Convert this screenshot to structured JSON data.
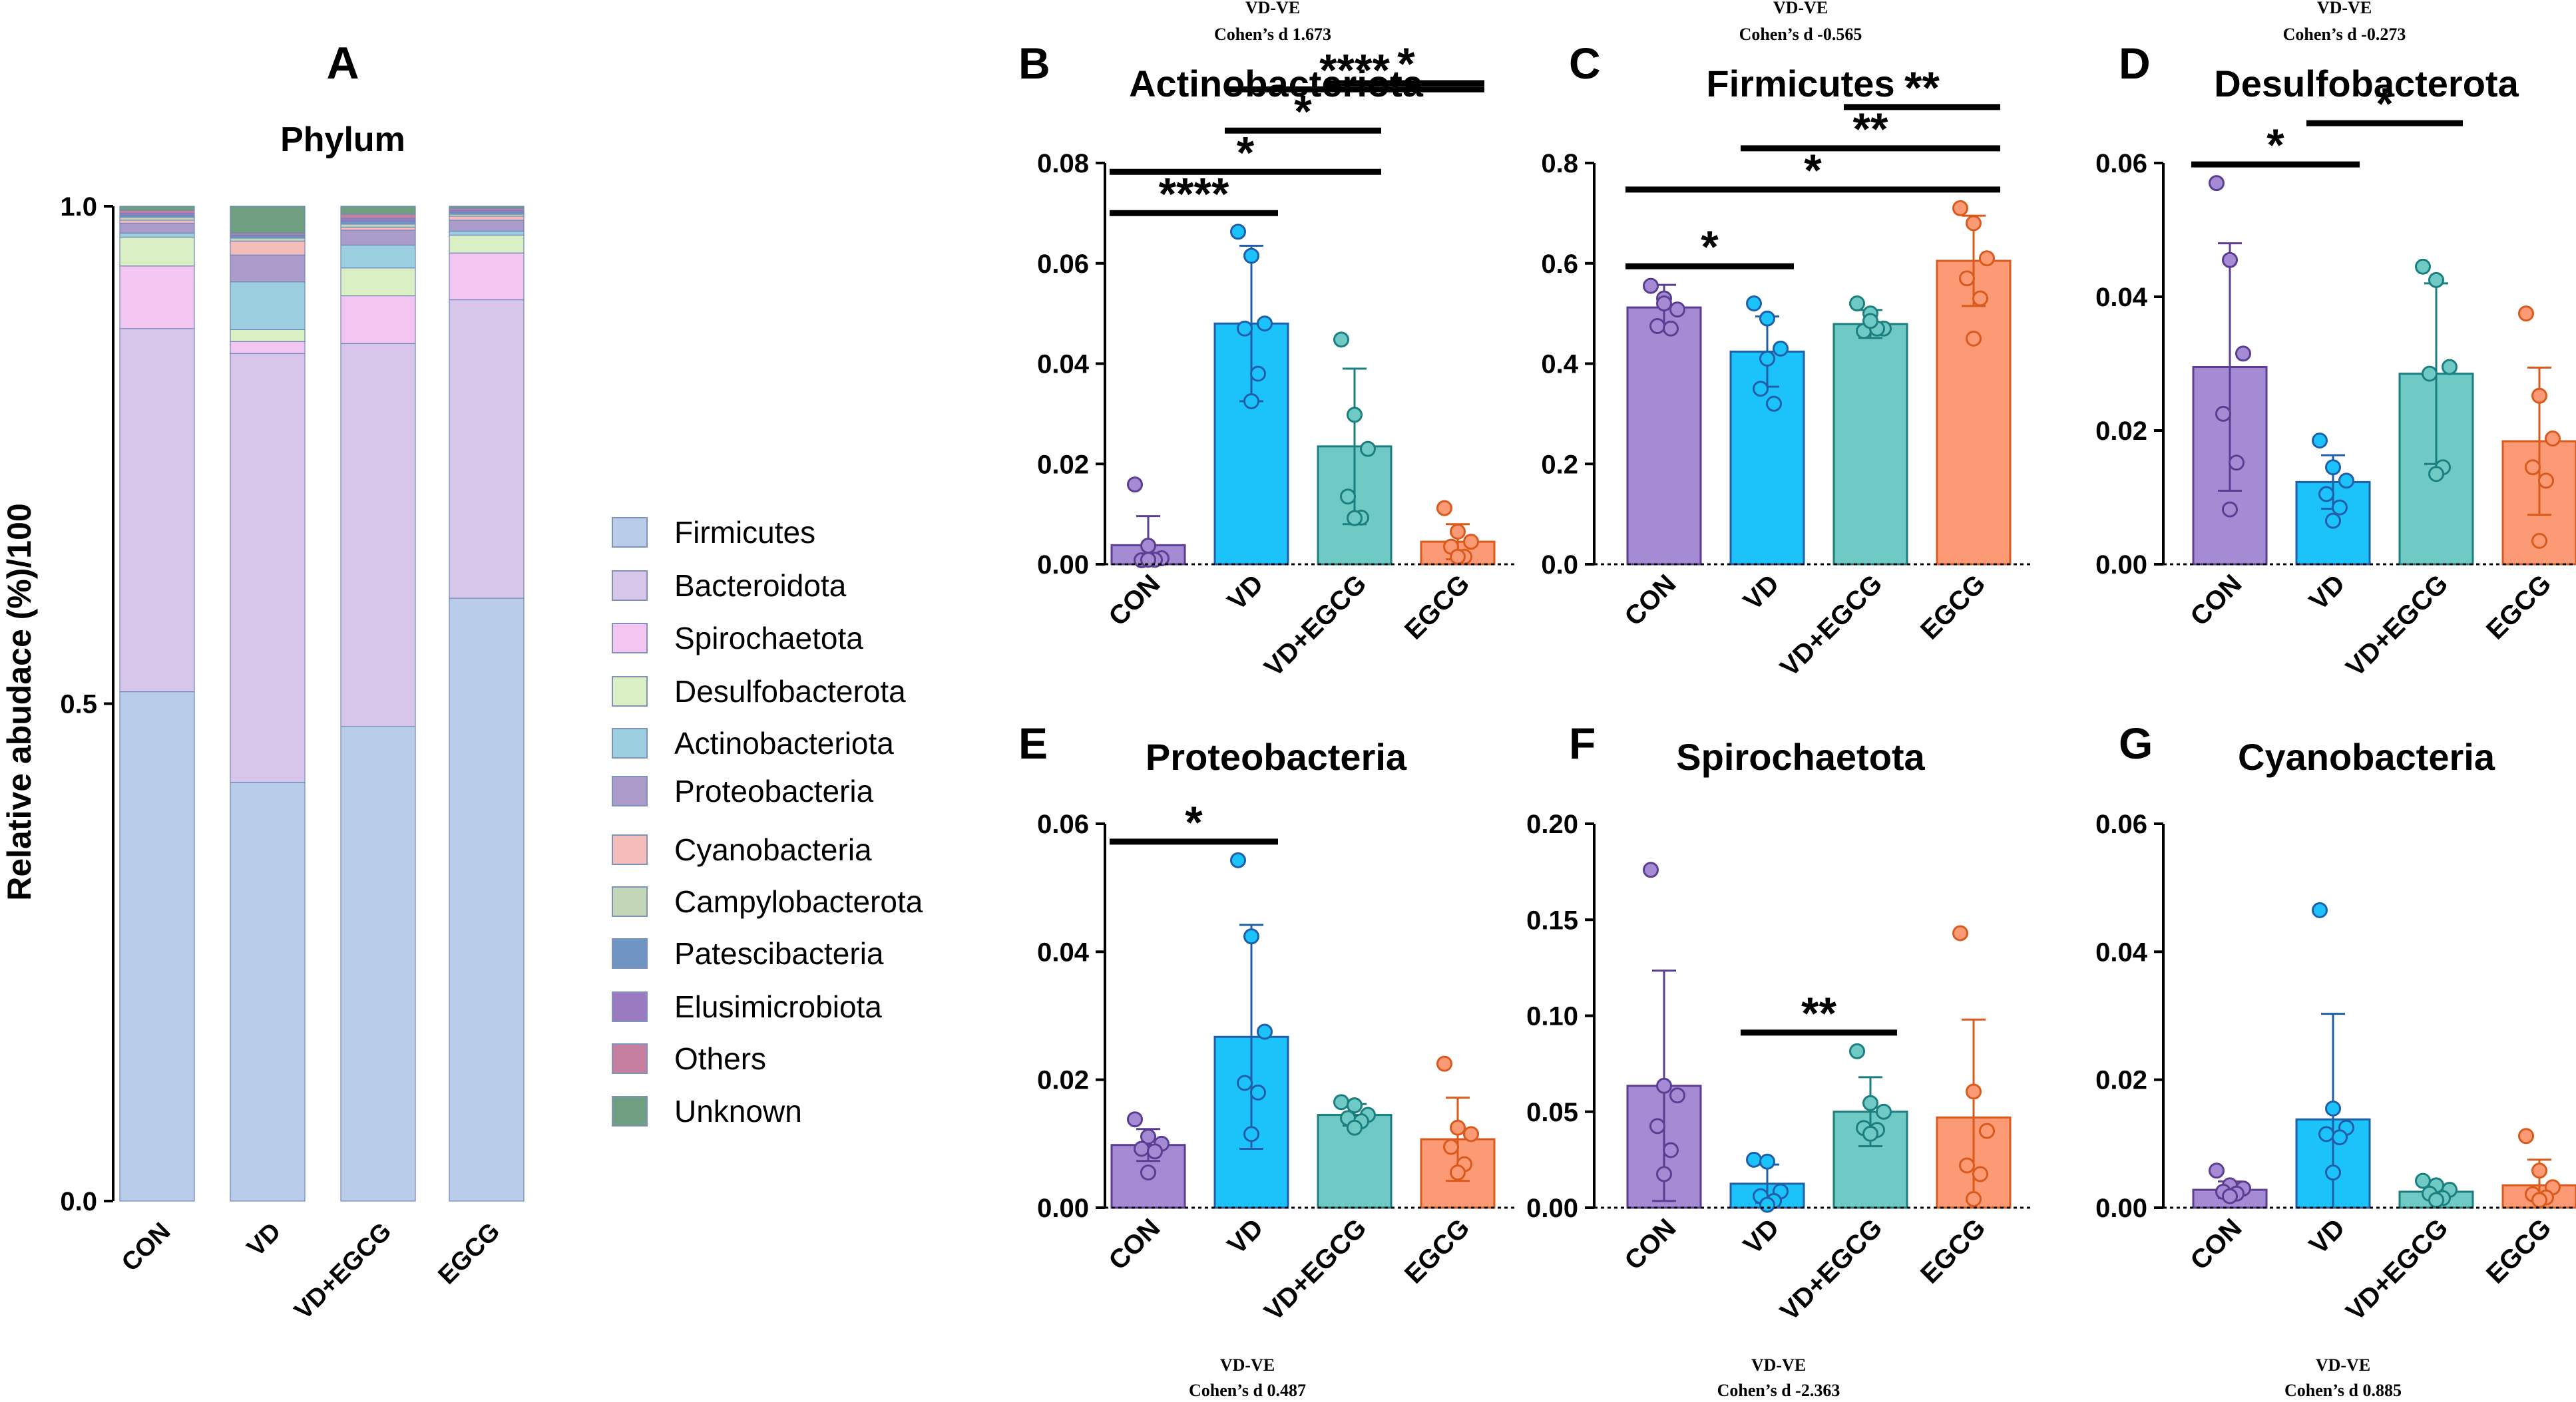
{
  "colors": {
    "groups": [
      "#a58bd4",
      "#1cc2fa",
      "#6fc9c5",
      "#fb9a74"
    ],
    "groups_dark": [
      "#5b3d93",
      "#1f5fa9",
      "#1b7f7f",
      "#d95a1c"
    ],
    "stack": {
      "Firmicutes": "#b9cdeb",
      "Bacteroidota": "#d8c6ea",
      "Spirochaetota": "#f2c6f1",
      "Desulfobacterota": "#dbefc4",
      "Actinobacteriota": "#9ccfe0",
      "Proteobacteria": "#ab9bcb",
      "Cyanobacteria": "#f5bcbc",
      "Campylobacterota": "#c4d6b8",
      "Patescibacteria": "#6f95c4",
      "Elusimicrobiota": "#9a7bc2",
      "Others": "#c77f9f",
      "Unknown": "#709e80"
    }
  },
  "panel_a": {
    "letter": "A",
    "chart_data": {
      "type": "bar",
      "stacked": true,
      "title": "Phylum",
      "ylabel": "Relative abudace (%)/100",
      "xlabel": "",
      "ylim": [
        0,
        1.0
      ],
      "yticks": [
        "0.0",
        "0.5",
        "1.0"
      ],
      "categories": [
        "CON",
        "VD",
        "VD+EGCG",
        "EGCG"
      ],
      "series": [
        {
          "name": "Firmicutes",
          "values": [
            0.512,
            0.421,
            0.477,
            0.606
          ]
        },
        {
          "name": "Bacteroidota",
          "values": [
            0.365,
            0.431,
            0.385,
            0.3
          ]
        },
        {
          "name": "Spirochaetota",
          "values": [
            0.063,
            0.012,
            0.048,
            0.047
          ]
        },
        {
          "name": "Desulfobacterota",
          "values": [
            0.029,
            0.012,
            0.028,
            0.018
          ]
        },
        {
          "name": "Actinobacteriota",
          "values": [
            0.004,
            0.048,
            0.023,
            0.004
          ]
        },
        {
          "name": "Proteobacteria",
          "values": [
            0.01,
            0.027,
            0.015,
            0.011
          ]
        },
        {
          "name": "Cyanobacteria",
          "values": [
            0.003,
            0.014,
            0.003,
            0.004
          ]
        },
        {
          "name": "Campylobacterota",
          "values": [
            0.003,
            0.003,
            0.003,
            0.002
          ]
        },
        {
          "name": "Patescibacteria",
          "values": [
            0.002,
            0.002,
            0.003,
            0.002
          ]
        },
        {
          "name": "Elusimicrobiota",
          "values": [
            0.002,
            0.001,
            0.003,
            0.002
          ]
        },
        {
          "name": "Others",
          "values": [
            0.003,
            0.002,
            0.004,
            0.002
          ]
        },
        {
          "name": "Unknown",
          "values": [
            0.004,
            0.027,
            0.008,
            0.002
          ]
        }
      ],
      "legend": [
        "Firmicutes",
        "Bacteroidota",
        "Spirochaetota",
        "Desulfobacterota",
        "Actinobacteriota",
        "Proteobacteria",
        "Cyanobacteria",
        "Campylobacterota",
        "Patescibacteria",
        "Elusimicrobiota",
        "Others",
        "Unknown"
      ],
      "legend_position": "right"
    }
  },
  "chart_data": [
    {
      "letter": "B",
      "type": "bar",
      "title": "Actinobacteriota",
      "note_top": "VD-VE",
      "note_effect": "Cohen’s d 1.673",
      "categories": [
        "CON",
        "VD",
        "VD+EGCG",
        "EGCG"
      ],
      "ylim": [
        0,
        0.08
      ],
      "yticks": [
        "0.00",
        "0.02",
        "0.04",
        "0.06",
        "0.08"
      ],
      "means": [
        0.0038,
        0.048,
        0.0235,
        0.0045
      ],
      "sd": [
        0.0058,
        0.0155,
        0.0155,
        0.0035
      ],
      "points": [
        [
          0.0159,
          0.0037,
          0.0012,
          0.0008,
          0.0009,
          0.0009
        ],
        [
          0.0663,
          0.0615,
          0.048,
          0.047,
          0.038,
          0.0325
        ],
        [
          0.0448,
          0.0298,
          0.023,
          0.0135,
          0.0093,
          0.0092
        ],
        [
          0.0112,
          0.0065,
          0.0045,
          0.0035,
          0.0015,
          0.0015
        ]
      ],
      "annotations": [
        {
          "from": 0,
          "to": 1,
          "label": "****"
        },
        {
          "from": 0,
          "to": 2,
          "label": "*"
        },
        {
          "from": 1,
          "to": 2,
          "label": "*"
        },
        {
          "from": 1,
          "to": 3,
          "label": "****"
        },
        {
          "from": 2,
          "to": 3,
          "label": "*"
        }
      ]
    },
    {
      "letter": "C",
      "type": "bar",
      "title": "Firmicutes",
      "note_top": "VD-VE",
      "note_effect": "Cohen’s d -0.565",
      "categories": [
        "CON",
        "VD",
        "VD+EGCG",
        "EGCG"
      ],
      "ylim": [
        0,
        0.8
      ],
      "yticks": [
        "0.0",
        "0.2",
        "0.4",
        "0.6",
        "0.8"
      ],
      "means": [
        0.512,
        0.424,
        0.479,
        0.605
      ],
      "sd": [
        0.045,
        0.07,
        0.028,
        0.09
      ],
      "points": [
        [
          0.555,
          0.53,
          0.508,
          0.475,
          0.47,
          0.52
        ],
        [
          0.52,
          0.49,
          0.43,
          0.35,
          0.32,
          0.41
        ],
        [
          0.52,
          0.5,
          0.47,
          0.465,
          0.47,
          0.485
        ],
        [
          0.71,
          0.68,
          0.61,
          0.57,
          0.53,
          0.45
        ]
      ],
      "annotations": [
        {
          "from": 0,
          "to": 1,
          "label": "*"
        },
        {
          "from": 0,
          "to": 3,
          "label": "*"
        },
        {
          "from": 1,
          "to": 3,
          "label": "**"
        },
        {
          "from": 2,
          "to": 3,
          "label": "**"
        }
      ]
    },
    {
      "letter": "D",
      "type": "bar",
      "title": "Desulfobacterota",
      "note_top": "VD-VE",
      "note_effect": "Cohen’s d -0.273",
      "categories": [
        "CON",
        "VD",
        "VD+EGCG",
        "EGCG"
      ],
      "ylim": [
        0,
        0.06
      ],
      "yticks": [
        "0.00",
        "0.02",
        "0.04",
        "0.06"
      ],
      "means": [
        0.0295,
        0.0123,
        0.0285,
        0.0184
      ],
      "sd": [
        0.0185,
        0.004,
        0.0135,
        0.011
      ],
      "points": [
        [
          0.057,
          0.0455,
          0.0315,
          0.0225,
          0.0152,
          0.0082
        ],
        [
          0.0185,
          0.0145,
          0.0125,
          0.0105,
          0.0085,
          0.0065
        ],
        [
          0.0445,
          0.0425,
          0.0295,
          0.0285,
          0.0145,
          0.0135
        ],
        [
          0.0375,
          0.0252,
          0.0188,
          0.0145,
          0.0125,
          0.0035
        ]
      ],
      "annotations": [
        {
          "from": 0,
          "to": 1,
          "label": "*"
        },
        {
          "from": 1,
          "to": 2,
          "label": "*"
        }
      ]
    },
    {
      "letter": "E",
      "type": "bar",
      "title": "Proteobacteria",
      "note_top": "VD-VE",
      "note_effect": "Cohen’s d 0.487",
      "categories": [
        "CON",
        "VD",
        "VD+EGCG",
        "EGCG"
      ],
      "ylim": [
        0,
        0.06
      ],
      "yticks": [
        "0.00",
        "0.02",
        "0.04",
        "0.06"
      ],
      "means": [
        0.0098,
        0.0267,
        0.0145,
        0.0107
      ],
      "sd": [
        0.0025,
        0.0175,
        0.0017,
        0.0065
      ],
      "points": [
        [
          0.0138,
          0.0111,
          0.01,
          0.0092,
          0.0088,
          0.0055
        ],
        [
          0.0543,
          0.0424,
          0.0275,
          0.0195,
          0.018,
          0.0115
        ],
        [
          0.0165,
          0.016,
          0.0145,
          0.014,
          0.0135,
          0.0125
        ],
        [
          0.0225,
          0.0125,
          0.0115,
          0.0095,
          0.0068,
          0.0055
        ]
      ],
      "annotations": [
        {
          "from": 0,
          "to": 1,
          "label": "*"
        }
      ]
    },
    {
      "letter": "F",
      "type": "bar",
      "title": "Spirochaetota",
      "note_top": "VD-VE",
      "note_effect": "Cohen’s d -2.363",
      "categories": [
        "CON",
        "VD",
        "VD+EGCG",
        "EGCG"
      ],
      "ylim": [
        0,
        0.2
      ],
      "yticks": [
        "0.00",
        "0.05",
        "0.10",
        "0.15",
        "0.20"
      ],
      "means": [
        0.0635,
        0.0125,
        0.05,
        0.047
      ],
      "sd": [
        0.06,
        0.01,
        0.018,
        0.051
      ],
      "points": [
        [
          0.176,
          0.0635,
          0.0585,
          0.0425,
          0.03,
          0.0175
        ],
        [
          0.025,
          0.024,
          0.0085,
          0.006,
          0.0035,
          0.0015
        ],
        [
          0.0815,
          0.0545,
          0.05,
          0.0415,
          0.0405,
          0.0385
        ],
        [
          0.143,
          0.0605,
          0.04,
          0.022,
          0.0175,
          0.0045
        ]
      ],
      "annotations": [
        {
          "from": 1,
          "to": 2,
          "label": "**"
        }
      ]
    },
    {
      "letter": "G",
      "type": "bar",
      "title": "Cyanobacteria",
      "note_top": "VD-VE",
      "note_effect": "Cohen’s d 0.885",
      "categories": [
        "CON",
        "VD",
        "VD+EGCG",
        "EGCG"
      ],
      "ylim": [
        0,
        0.06
      ],
      "yticks": [
        "0.00",
        "0.02",
        "0.04",
        "0.06"
      ],
      "means": [
        0.0028,
        0.0138,
        0.0025,
        0.0035
      ],
      "sd": [
        0.0013,
        0.0165,
        0.0011,
        0.004
      ],
      "points": [
        [
          0.0058,
          0.0035,
          0.003,
          0.0025,
          0.0022,
          0.0018
        ],
        [
          0.0465,
          0.0155,
          0.0125,
          0.0115,
          0.011,
          0.0055
        ],
        [
          0.0042,
          0.0035,
          0.0028,
          0.0022,
          0.0015,
          0.0012
        ],
        [
          0.0112,
          0.0058,
          0.0032,
          0.0021,
          0.0016,
          0.0012
        ]
      ],
      "annotations": []
    }
  ]
}
